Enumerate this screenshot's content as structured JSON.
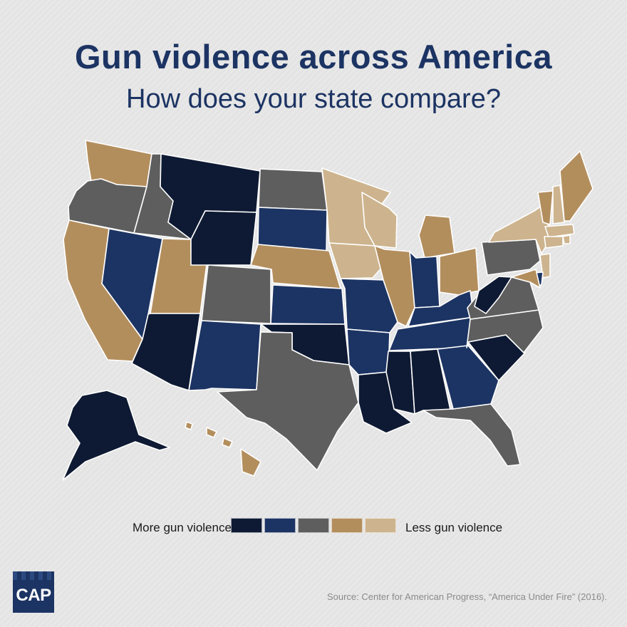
{
  "title": "Gun violence across America",
  "subtitle": "How does your state compare?",
  "legend": {
    "left_label": "More gun violence",
    "right_label": "Less gun violence",
    "colors": [
      "#0e1a33",
      "#1c3463",
      "#5e5e5e",
      "#b38e5d",
      "#cdb48e"
    ]
  },
  "source": "Source: Center for American Progress, “America Under Fire” (2016).",
  "logo": "CAP",
  "map_data": {
    "levels": {
      "1": "most",
      "2": "more",
      "3": "middle",
      "4": "less",
      "5": "least"
    },
    "states": {
      "WA": 4,
      "OR": 3,
      "CA": 4,
      "ID": 3,
      "NV": 2,
      "UT": 4,
      "AZ": 1,
      "MT": 1,
      "WY": 1,
      "CO": 3,
      "NM": 2,
      "ND": 3,
      "SD": 2,
      "NE": 4,
      "KS": 2,
      "OK": 1,
      "TX": 3,
      "MN": 5,
      "IA": 5,
      "MO": 2,
      "AR": 2,
      "LA": 1,
      "WI": 5,
      "IL": 4,
      "MI": 4,
      "IN": 2,
      "OH": 4,
      "KY": 2,
      "TN": 2,
      "MS": 1,
      "AL": 1,
      "GA": 2,
      "FL": 3,
      "SC": 1,
      "NC": 3,
      "VA": 3,
      "WV": 1,
      "PA": 3,
      "NY": 5,
      "VT": 4,
      "NH": 5,
      "ME": 4,
      "MA": 5,
      "RI": 5,
      "CT": 5,
      "NJ": 5,
      "DE": 2,
      "MD": 4,
      "AK": 1,
      "HI": 4
    }
  }
}
